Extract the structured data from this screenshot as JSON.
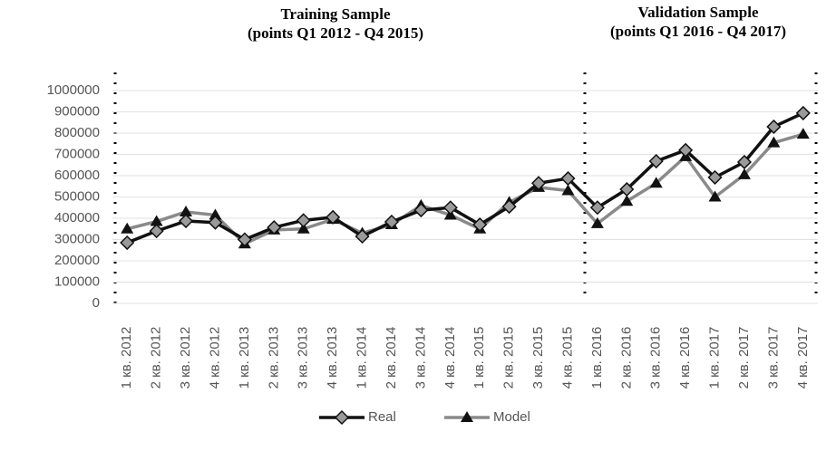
{
  "chart_data": {
    "type": "line",
    "annotations": [
      {
        "title": "Training Sample",
        "subtitle": "(points Q1 2012 - Q4 2015)"
      },
      {
        "title": "Validation Sample",
        "subtitle": "(points Q1 2016 - Q4 2017)"
      }
    ],
    "categories": [
      "1 кв. 2012",
      "2 кв. 2012",
      "3 кв. 2012",
      "4 кв. 2012",
      "1 кв. 2013",
      "2 кв. 2013",
      "3 кв. 2013",
      "4 кв. 2013",
      "1 кв. 2014",
      "2 кв. 2014",
      "3 кв. 2014",
      "4 кв. 2014",
      "1 кв. 2015",
      "2 кв. 2015",
      "3 кв. 2015",
      "4 кв. 2015",
      "1 кв. 2016",
      "2 кв. 2016",
      "3 кв. 2016",
      "4 кв. 2016",
      "1 кв. 2017",
      "2 кв. 2017",
      "3 кв. 2017",
      "4 кв. 2017"
    ],
    "series": [
      {
        "name": "Real",
        "color": "#111111",
        "marker_color": "#9a9a9a",
        "marker": "diamond",
        "values": [
          285000,
          340000,
          387000,
          380000,
          300000,
          357000,
          390000,
          405000,
          315000,
          383000,
          438000,
          450000,
          370000,
          455000,
          565000,
          587000,
          450000,
          536000,
          668000,
          720000,
          592000,
          664000,
          830000,
          894000
        ]
      },
      {
        "name": "Model",
        "color": "#8a8a8a",
        "marker_color": "#111111",
        "marker": "triangle",
        "values": [
          350000,
          385000,
          430000,
          415000,
          280000,
          345000,
          350000,
          395000,
          330000,
          370000,
          460000,
          415000,
          350000,
          475000,
          545000,
          530000,
          375000,
          480000,
          565000,
          690000,
          500000,
          605000,
          755000,
          795000
        ]
      }
    ],
    "ylim": [
      0,
      1000000
    ],
    "yticks": [
      0,
      100000,
      200000,
      300000,
      400000,
      500000,
      600000,
      700000,
      800000,
      900000,
      1000000
    ],
    "grid": true,
    "legend": "bottom"
  }
}
